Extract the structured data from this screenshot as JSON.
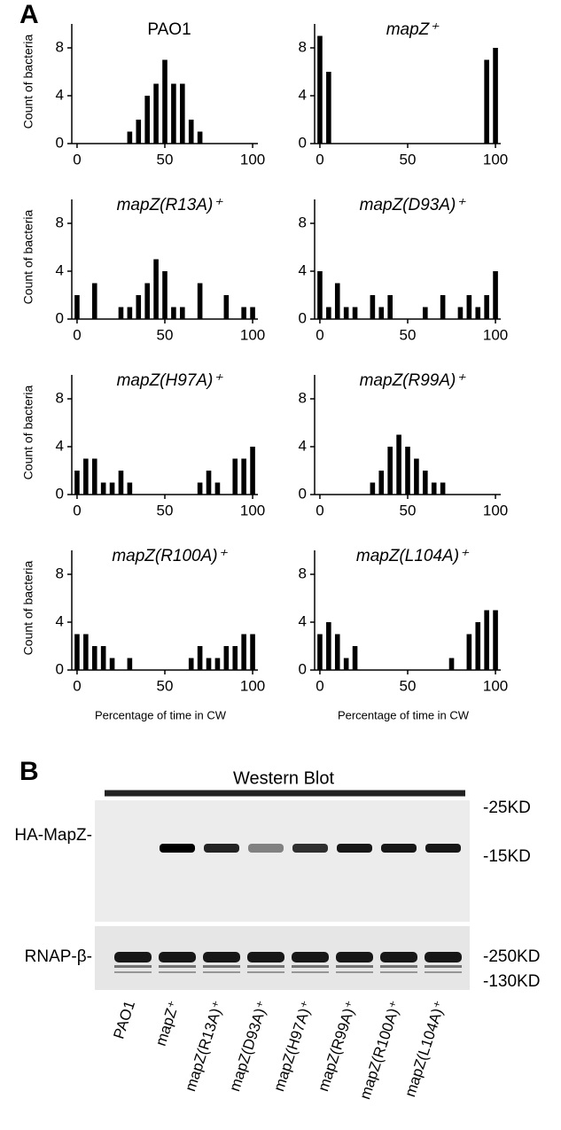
{
  "panel_labels": [
    "A",
    "B"
  ],
  "chart_data": [
    {
      "type": "bar",
      "title": "PAO1",
      "title_style": "normal",
      "ylabel": "Count of bacteria",
      "x": [
        30,
        35,
        40,
        45,
        50,
        55,
        60,
        65,
        70
      ],
      "values": [
        1,
        2,
        4,
        5,
        7,
        5,
        5,
        2,
        1
      ],
      "xlim": [
        -3,
        103
      ],
      "ylim": [
        0,
        10
      ],
      "xticks": [
        0,
        50,
        100
      ],
      "yticks": [
        0,
        4,
        8
      ],
      "color": "#000000"
    },
    {
      "type": "bar",
      "title": "mapZ⁺",
      "title_style": "italic",
      "x": [
        0,
        5,
        95,
        100
      ],
      "values": [
        9,
        6,
        7,
        8
      ],
      "xlim": [
        -3,
        103
      ],
      "ylim": [
        0,
        10
      ],
      "xticks": [
        0,
        50,
        100
      ],
      "yticks": [
        0,
        4,
        8
      ],
      "color": "#000000"
    },
    {
      "type": "bar",
      "title": "mapZ(R13A)⁺",
      "title_style": "italic",
      "ylabel": "Count of bacteria",
      "x": [
        0,
        10,
        25,
        30,
        35,
        40,
        45,
        50,
        55,
        60,
        70,
        85,
        95,
        100
      ],
      "values": [
        2,
        3,
        1,
        1,
        2,
        3,
        5,
        4,
        1,
        1,
        3,
        2,
        1,
        1
      ],
      "xlim": [
        -3,
        103
      ],
      "ylim": [
        0,
        10
      ],
      "xticks": [
        0,
        50,
        100
      ],
      "yticks": [
        0,
        4,
        8
      ],
      "color": "#000000"
    },
    {
      "type": "bar",
      "title": "mapZ(D93A)⁺",
      "title_style": "italic",
      "x": [
        0,
        5,
        10,
        15,
        20,
        30,
        35,
        40,
        60,
        70,
        80,
        85,
        90,
        95,
        100
      ],
      "values": [
        4,
        1,
        3,
        1,
        1,
        2,
        1,
        2,
        1,
        2,
        1,
        2,
        1,
        2,
        4
      ],
      "xlim": [
        -3,
        103
      ],
      "ylim": [
        0,
        10
      ],
      "xticks": [
        0,
        50,
        100
      ],
      "yticks": [
        0,
        4,
        8
      ],
      "color": "#000000"
    },
    {
      "type": "bar",
      "title": "mapZ(H97A)⁺",
      "title_style": "italic",
      "ylabel": "Count of bacteria",
      "x": [
        0,
        5,
        10,
        15,
        20,
        25,
        30,
        70,
        75,
        80,
        90,
        95,
        100
      ],
      "values": [
        2,
        3,
        3,
        1,
        1,
        2,
        1,
        1,
        2,
        1,
        3,
        3,
        4
      ],
      "xlim": [
        -3,
        103
      ],
      "ylim": [
        0,
        10
      ],
      "xticks": [
        0,
        50,
        100
      ],
      "yticks": [
        0,
        4,
        8
      ],
      "color": "#000000"
    },
    {
      "type": "bar",
      "title": "mapZ(R99A)⁺",
      "title_style": "italic",
      "x": [
        30,
        35,
        40,
        45,
        50,
        55,
        60,
        65,
        70
      ],
      "values": [
        1,
        2,
        4,
        5,
        4,
        3,
        2,
        1,
        1
      ],
      "xlim": [
        -3,
        103
      ],
      "ylim": [
        0,
        10
      ],
      "xticks": [
        0,
        50,
        100
      ],
      "yticks": [
        0,
        4,
        8
      ],
      "color": "#000000"
    },
    {
      "type": "bar",
      "title": "mapZ(R100A)⁺",
      "title_style": "italic",
      "ylabel": "Count of bacteria",
      "xlabel": "Percentage of time in CW",
      "x": [
        0,
        5,
        10,
        15,
        20,
        30,
        65,
        70,
        75,
        80,
        85,
        90,
        95,
        100
      ],
      "values": [
        3,
        3,
        2,
        2,
        1,
        1,
        1,
        2,
        1,
        1,
        2,
        2,
        3,
        3
      ],
      "xlim": [
        -3,
        103
      ],
      "ylim": [
        0,
        10
      ],
      "xticks": [
        0,
        50,
        100
      ],
      "yticks": [
        0,
        4,
        8
      ],
      "color": "#000000"
    },
    {
      "type": "bar",
      "title": "mapZ(L104A)⁺",
      "title_style": "italic",
      "xlabel": "Percentage of time in CW",
      "x": [
        0,
        5,
        10,
        15,
        20,
        75,
        85,
        90,
        95,
        100
      ],
      "values": [
        3,
        4,
        3,
        1,
        2,
        1,
        3,
        4,
        5,
        5
      ],
      "xlim": [
        -3,
        103
      ],
      "ylim": [
        0,
        10
      ],
      "xticks": [
        0,
        50,
        100
      ],
      "yticks": [
        0,
        4,
        8
      ],
      "color": "#000000"
    }
  ],
  "western_blot": {
    "title": "Western Blot",
    "rows": [
      "HA-MapZ-",
      "RNAP-β-"
    ],
    "markers": [
      "-25KD",
      "-15KD",
      "-250KD",
      "-130KD"
    ],
    "lanes": [
      "PAO1",
      "mapZ⁺",
      "mapZ(R13A)⁺",
      "mapZ(D93A)⁺",
      "mapZ(H97A)⁺",
      "mapZ(R99A)⁺",
      "mapZ(R100A)⁺",
      "mapZ(L104A)⁺"
    ]
  }
}
